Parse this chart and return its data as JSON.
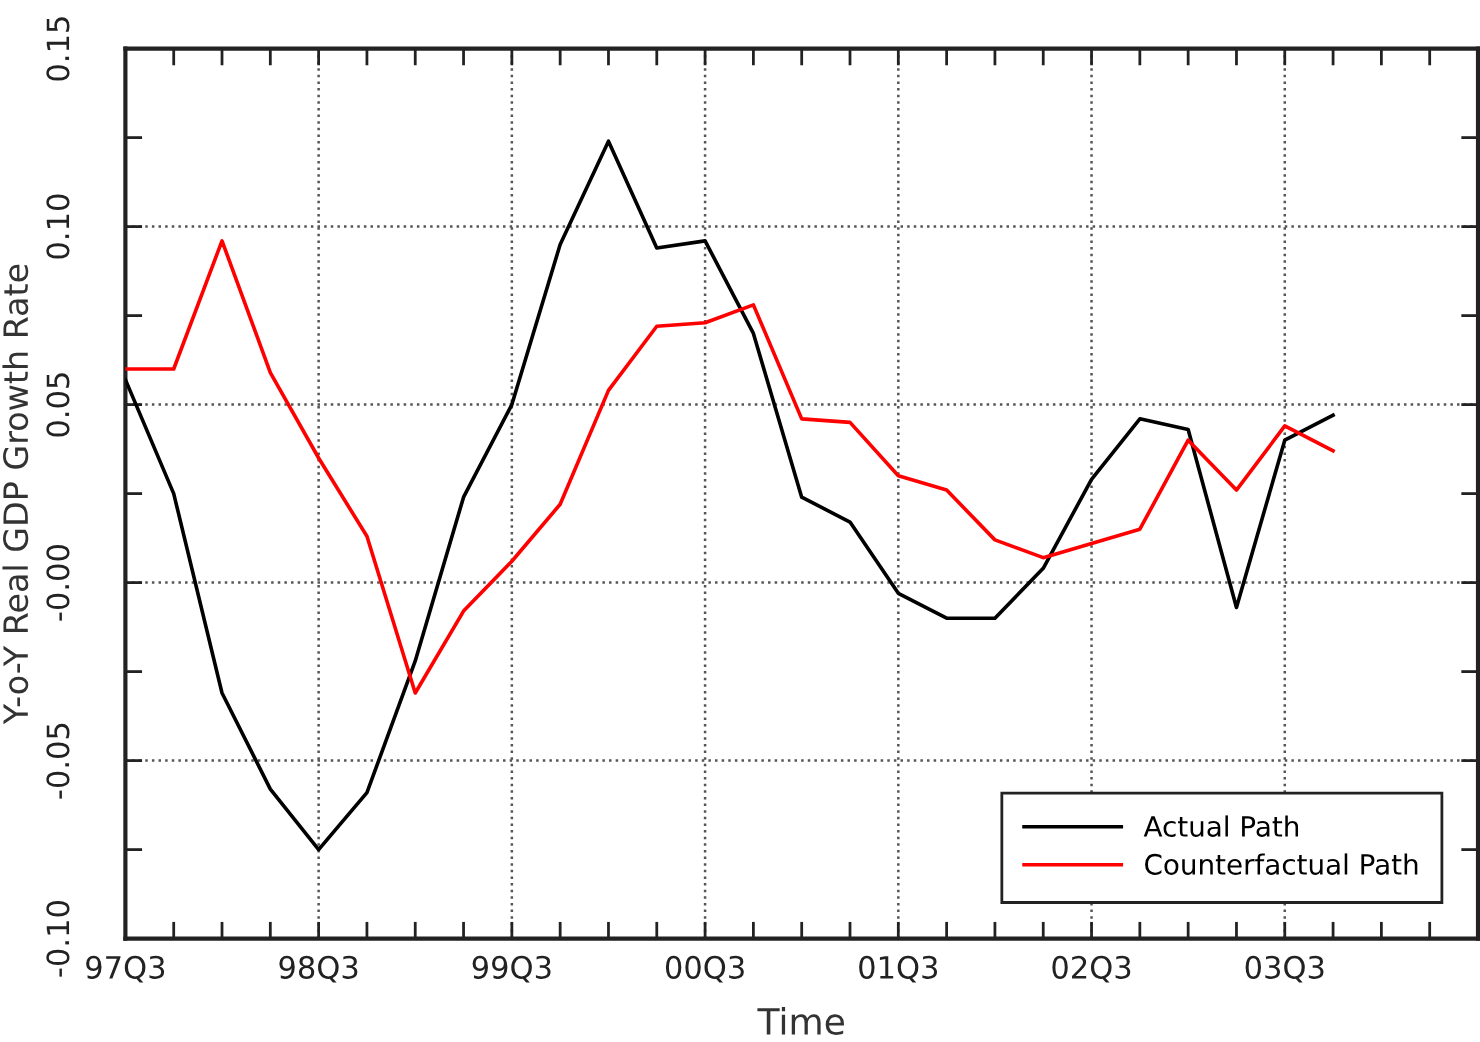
{
  "chart_data": {
    "type": "line",
    "xlabel": "Time",
    "ylabel": "Y-o-Y Real GDP Growth Rate",
    "categories": [
      "97Q3",
      null,
      null,
      null,
      "98Q3",
      null,
      null,
      null,
      "99Q3",
      null,
      null,
      null,
      "00Q3",
      null,
      null,
      null,
      "01Q3",
      null,
      null,
      null,
      "02Q3",
      null,
      null,
      null,
      "03Q3",
      null,
      null,
      null,
      null
    ],
    "series": [
      {
        "name": "Actual Path",
        "color": "#000000",
        "values": [
          0.057,
          0.025,
          -0.031,
          -0.058,
          -0.075,
          -0.059,
          -0.022,
          0.024,
          0.05,
          0.095,
          0.124,
          0.094,
          0.096,
          0.07,
          0.024,
          0.017,
          -0.003,
          -0.01,
          -0.01,
          0.004,
          0.029,
          0.046,
          0.043,
          -0.007,
          0.04,
          0.047,
          null,
          null,
          null
        ]
      },
      {
        "name": "Counterfactual Path",
        "color": "#ff0000",
        "values": [
          0.06,
          0.06,
          0.096,
          0.059,
          0.035,
          0.013,
          -0.031,
          -0.008,
          0.006,
          0.022,
          0.054,
          0.072,
          0.073,
          0.078,
          0.046,
          0.045,
          0.03,
          0.026,
          0.012,
          0.007,
          0.011,
          0.015,
          0.04,
          0.026,
          0.044,
          0.037,
          null,
          null,
          null
        ]
      }
    ],
    "ylim": [
      -0.1,
      0.15
    ],
    "yticks": [
      0.15,
      {
        "value": 0.125,
        "label": null
      },
      {
        "value": 0.1,
        "label": "0.10"
      },
      {
        "value": 0.075,
        "label": null
      },
      0.05,
      {
        "value": 0.025,
        "label": null
      },
      {
        "value": 0,
        "label": "-0.00"
      },
      {
        "value": -0.025,
        "label": null
      },
      -0.05,
      {
        "value": -0.075,
        "label": null
      },
      {
        "value": -0.1,
        "label": "-0.10"
      }
    ],
    "grid": true,
    "legend": "bottom right",
    "line_style": "solid"
  }
}
